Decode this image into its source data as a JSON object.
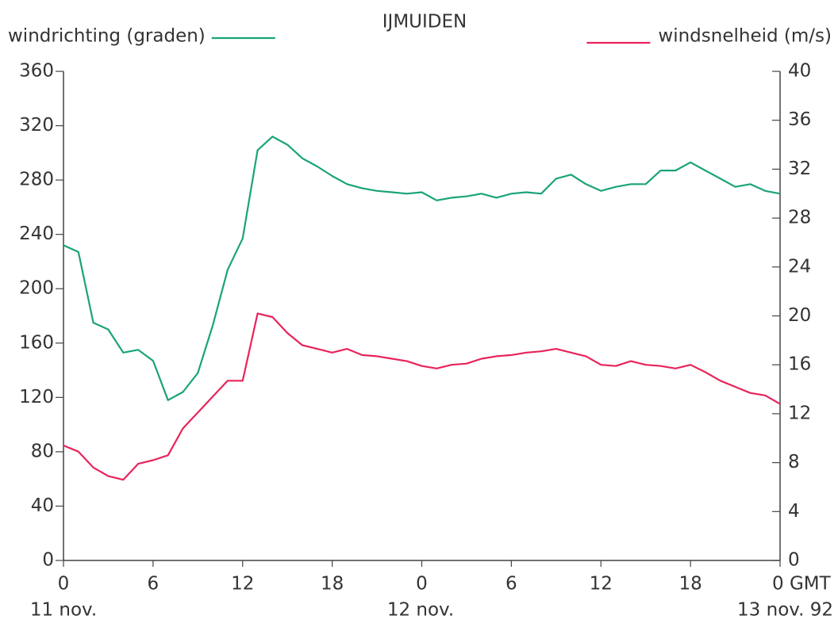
{
  "chart_data": {
    "type": "line",
    "title": "IJMUIDEN",
    "annotations": [
      "11 nov.",
      "12 nov.",
      "13 nov. 92"
    ],
    "x": [
      0,
      1,
      2,
      3,
      4,
      5,
      6,
      7,
      8,
      9,
      10,
      11,
      12,
      13,
      14,
      15,
      16,
      17,
      18,
      19,
      20,
      21,
      22,
      23,
      24,
      25,
      26,
      27,
      28,
      29,
      30,
      31,
      32,
      33,
      34,
      35,
      36,
      37,
      38,
      39,
      40,
      41,
      42,
      43,
      44,
      45,
      46,
      47,
      48
    ],
    "xlim": [
      0,
      48
    ],
    "xticks": [
      0,
      6,
      12,
      18,
      {
        "value": 24,
        "label": "0"
      },
      {
        "value": 30,
        "label": "6"
      },
      {
        "value": 36,
        "label": "12"
      },
      {
        "value": 42,
        "label": "18"
      },
      {
        "value": 48,
        "label": "0 GMT"
      }
    ],
    "ylim": [
      0,
      360
    ],
    "yticks": [
      0,
      40,
      80,
      120,
      160,
      200,
      240,
      280,
      320,
      360
    ],
    "y2lim": [
      0,
      40
    ],
    "y2ticks": [
      0,
      4,
      8,
      12,
      16,
      20,
      24,
      28,
      32,
      36,
      40
    ],
    "series": [
      {
        "name": "windrichting (graden)",
        "color": "#1aa37a",
        "axis": "y",
        "values": [
          232,
          227,
          175,
          170,
          153,
          155,
          147,
          118,
          124,
          138,
          173,
          214,
          237,
          302,
          312,
          306,
          296,
          290,
          283,
          277,
          274,
          272,
          271,
          270,
          271,
          265,
          267,
          268,
          270,
          267,
          270,
          271,
          270,
          281,
          284,
          277,
          272,
          275,
          277,
          277,
          287,
          287,
          293,
          287,
          281,
          275,
          277,
          272,
          270
        ]
      },
      {
        "name": "windsnelheid (m/s)",
        "color": "#e8245a",
        "axis": "y2",
        "values": [
          9.4,
          8.9,
          7.6,
          6.9,
          6.6,
          7.9,
          8.2,
          8.6,
          10.8,
          12.1,
          13.4,
          14.7,
          14.7,
          20.2,
          19.9,
          18.6,
          17.6,
          17.3,
          17.0,
          17.3,
          16.8,
          16.7,
          16.5,
          16.3,
          15.9,
          15.7,
          16.0,
          16.1,
          16.5,
          16.7,
          16.8,
          17.0,
          17.1,
          17.3,
          17.0,
          16.7,
          16.0,
          15.9,
          16.3,
          16.0,
          15.9,
          15.7,
          16.0,
          15.4,
          14.7,
          14.2,
          13.7,
          13.5,
          12.8
        ]
      }
    ],
    "legend": "top"
  }
}
